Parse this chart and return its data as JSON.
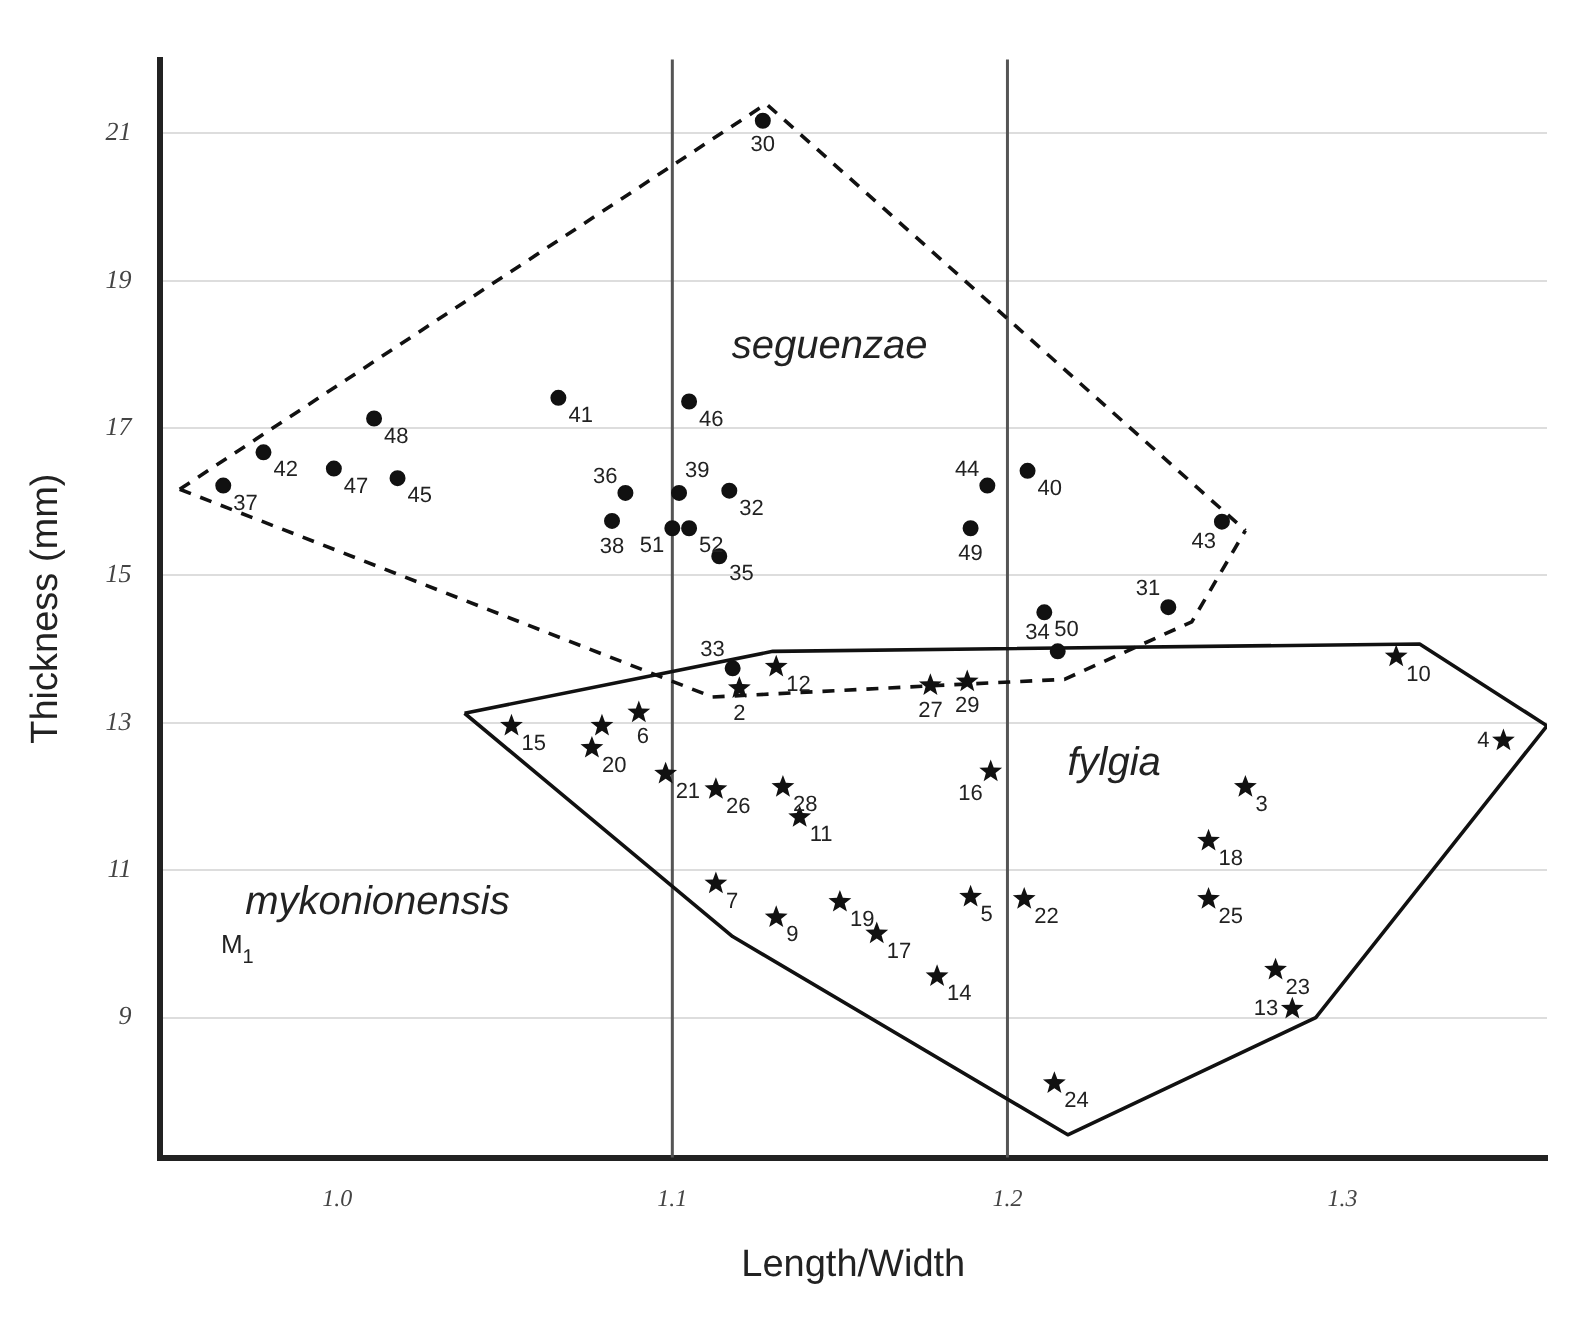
{
  "chart_data": {
    "type": "scatter",
    "xlabel": "Length/Width",
    "ylabel": "Thickness (mm)",
    "xlim": [
      0.947,
      1.361
    ],
    "ylim": [
      7.1,
      22
    ],
    "xticks": [
      {
        "value": 1,
        "label": "1.0"
      },
      1.1,
      1.2,
      1.3
    ],
    "yticks": [
      9,
      11,
      13,
      15,
      17,
      19,
      21
    ],
    "grid": "y",
    "legend": false,
    "ref_lines": [
      {
        "axis": "x",
        "value": 1.1,
        "color": "#555555"
      },
      {
        "axis": "x",
        "value": 1.2,
        "color": "#555555"
      }
    ],
    "annotations": [
      "seguenzae",
      "fylgia",
      "mykonionensis",
      {
        "text": "30",
        "x": 1.127,
        "y": 21.17
      },
      {
        "text": "37",
        "x": 0.966,
        "y": 16.22
      },
      {
        "text": "42",
        "x": 0.978,
        "y": 16.67
      },
      {
        "text": "47",
        "x": 0.999,
        "y": 16.45
      },
      {
        "text": "48",
        "x": 1.011,
        "y": 17.13
      },
      {
        "text": "45",
        "x": 1.018,
        "y": 16.32
      },
      {
        "text": "41",
        "x": 1.066,
        "y": 17.41
      },
      {
        "text": "36",
        "x": 1.086,
        "y": 16.12
      },
      {
        "text": "38",
        "x": 1.082,
        "y": 15.74
      },
      {
        "text": "46",
        "x": 1.105,
        "y": 17.36
      },
      {
        "text": "39",
        "x": 1.102,
        "y": 16.12
      },
      {
        "text": "32",
        "x": 1.117,
        "y": 16.15
      },
      {
        "text": "51",
        "x": 1.1,
        "y": 15.64
      },
      {
        "text": "52",
        "x": 1.105,
        "y": 15.64
      },
      {
        "text": "35",
        "x": 1.114,
        "y": 15.26
      },
      {
        "text": "44",
        "x": 1.194,
        "y": 16.22
      },
      {
        "text": "49",
        "x": 1.189,
        "y": 15.64
      },
      {
        "text": "40",
        "x": 1.206,
        "y": 16.42
      },
      {
        "text": "50",
        "x": 1.211,
        "y": 14.5
      },
      {
        "text": "43",
        "x": 1.264,
        "y": 15.73
      },
      {
        "text": "31",
        "x": 1.248,
        "y": 14.57
      },
      {
        "text": "34",
        "x": 1.215,
        "y": 13.97
      },
      {
        "text": "33",
        "x": 1.118,
        "y": 13.74
      },
      {
        "text": "2",
        "x": 1.12,
        "y": 13.47
      },
      {
        "text": "12",
        "x": 1.131,
        "y": 13.76
      },
      {
        "text": "27",
        "x": 1.177,
        "y": 13.51
      },
      {
        "text": "29",
        "x": 1.188,
        "y": 13.56
      },
      {
        "text": "15",
        "x": 1.052,
        "y": 12.96
      },
      {
        "text": "6",
        "x": 1.09,
        "y": 13.14
      },
      {
        "text": "20",
        "x": 1.076,
        "y": 12.66
      },
      {
        "text": "21",
        "x": 1.098,
        "y": 12.31
      },
      {
        "text": "26",
        "x": 1.113,
        "y": 12.1
      },
      {
        "text": "28",
        "x": 1.133,
        "y": 12.13
      },
      {
        "text": "11",
        "x": 1.138,
        "y": 11.72
      },
      {
        "text": "16",
        "x": 1.195,
        "y": 12.34
      },
      {
        "text": "7",
        "x": 1.113,
        "y": 10.82
      },
      {
        "text": "9",
        "x": 1.131,
        "y": 10.36
      },
      {
        "text": "19",
        "x": 1.15,
        "y": 10.57
      },
      {
        "text": "17",
        "x": 1.161,
        "y": 10.14
      },
      {
        "text": "14",
        "x": 1.179,
        "y": 9.56
      },
      {
        "text": "5",
        "x": 1.189,
        "y": 10.64
      },
      {
        "text": "22",
        "x": 1.205,
        "y": 10.61
      },
      {
        "text": "24",
        "x": 1.214,
        "y": 8.11
      },
      {
        "text": "10",
        "x": 1.316,
        "y": 13.9
      },
      {
        "text": "4",
        "x": 1.348,
        "y": 12.76
      },
      {
        "text": "3",
        "x": 1.271,
        "y": 12.13
      },
      {
        "text": "18",
        "x": 1.26,
        "y": 11.4
      },
      {
        "text": "25",
        "x": 1.26,
        "y": 10.61
      },
      {
        "text": "23",
        "x": 1.28,
        "y": 9.65
      },
      {
        "text": "13",
        "x": 1.285,
        "y": 9.12
      },
      "M$_{1}$"
    ],
    "series": [
      {
        "type": "line",
        "color": "#111111",
        "marker": "none",
        "line_style": "dashed",
        "x": [
          0.953,
          1.128,
          1.271
        ],
        "values": [
          16.17,
          21.4,
          15.61
        ]
      },
      {
        "type": "line",
        "color": "#111111",
        "marker": "none",
        "line_style": "dashed",
        "x": [
          0.953,
          1.112,
          1.176,
          1.217,
          1.255,
          1.271
        ],
        "values": [
          16.17,
          13.35,
          13.5,
          13.59,
          14.37,
          15.61
        ]
      },
      {
        "type": "line",
        "color": "#111111",
        "marker": "none",
        "line_style": "solid",
        "x": [
          1.038,
          1.13,
          1.323,
          1.361
        ],
        "values": [
          13.13,
          13.97,
          14.07,
          12.96
        ]
      },
      {
        "type": "line",
        "color": "#111111",
        "marker": "none",
        "line_style": "solid",
        "x": [
          1.038,
          1.118,
          1.218,
          1.292,
          1.361
        ],
        "values": [
          13.13,
          10.1,
          7.41,
          9.0,
          12.96
        ]
      },
      {
        "type": "scatter",
        "color": "#111111",
        "marker": "circle",
        "x": [
          1.127,
          0.966,
          0.978,
          0.999,
          1.011,
          1.018,
          1.066,
          1.086,
          1.082,
          1.105,
          1.102,
          1.117,
          1.1,
          1.105,
          1.114,
          1.194,
          1.189,
          1.206,
          1.211,
          1.264,
          1.248,
          1.215,
          1.118
        ],
        "values": [
          21.17,
          16.22,
          16.67,
          16.45,
          17.13,
          16.32,
          17.41,
          16.12,
          15.74,
          17.36,
          16.12,
          16.15,
          15.64,
          15.64,
          15.26,
          16.22,
          15.64,
          16.42,
          14.5,
          15.73,
          14.57,
          13.97,
          13.74
        ]
      },
      {
        "type": "scatter",
        "color": "#111111",
        "marker": "star",
        "x": [
          1.12,
          1.131,
          1.177,
          1.188,
          1.052,
          1.09,
          1.079,
          1.076,
          1.098,
          1.113,
          1.133,
          1.138,
          1.195,
          1.113,
          1.131,
          1.15,
          1.161,
          1.179,
          1.189,
          1.205,
          1.214,
          1.316,
          1.348,
          1.271,
          1.26,
          1.26,
          1.28,
          1.285
        ],
        "values": [
          13.47,
          13.76,
          13.51,
          13.56,
          12.96,
          13.14,
          12.96,
          12.66,
          12.31,
          12.1,
          12.13,
          11.72,
          12.34,
          10.82,
          10.36,
          10.57,
          10.14,
          9.56,
          10.64,
          10.61,
          8.11,
          13.9,
          12.76,
          12.13,
          11.4,
          10.61,
          9.65,
          9.12
        ]
      }
    ]
  }
}
